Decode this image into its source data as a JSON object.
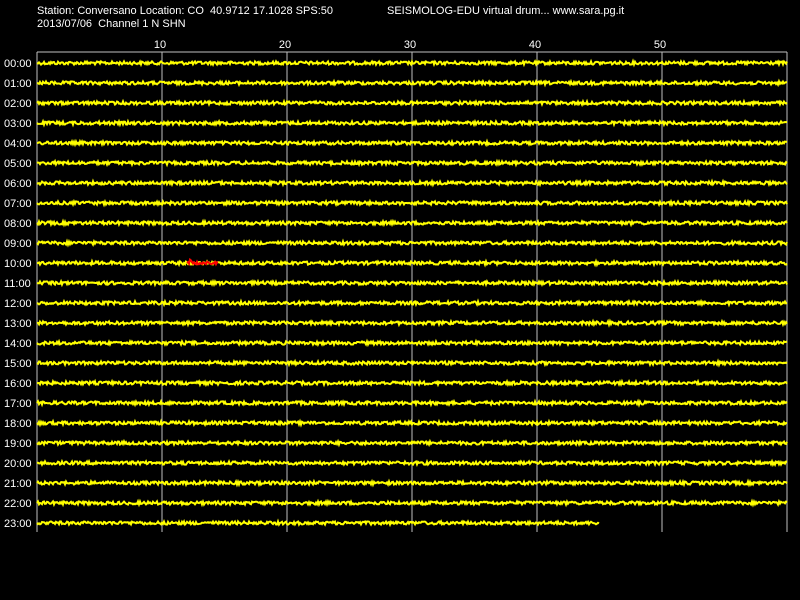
{
  "header": {
    "station_line": "Station: Conversano Location: CO  40.9712 17.1028 SPS:50",
    "app_line": "SEISMOLOG-EDU virtual drum... www.sara.pg.it",
    "date_line": "2013/07/06  Channel 1 N SHN"
  },
  "axis": {
    "minute_ticks": [
      "10",
      "20",
      "30",
      "40",
      "50"
    ],
    "minute_range": [
      0,
      60
    ]
  },
  "rows": [
    {
      "label": "00:00"
    },
    {
      "label": "01:00"
    },
    {
      "label": "02:00"
    },
    {
      "label": "03:00"
    },
    {
      "label": "04:00"
    },
    {
      "label": "05:00"
    },
    {
      "label": "06:00"
    },
    {
      "label": "07:00"
    },
    {
      "label": "08:00"
    },
    {
      "label": "09:00"
    },
    {
      "label": "10:00"
    },
    {
      "label": "11:00"
    },
    {
      "label": "12:00"
    },
    {
      "label": "13:00"
    },
    {
      "label": "14:00"
    },
    {
      "label": "15:00"
    },
    {
      "label": "16:00"
    },
    {
      "label": "17:00"
    },
    {
      "label": "18:00"
    },
    {
      "label": "19:00"
    },
    {
      "label": "20:00"
    },
    {
      "label": "21:00"
    },
    {
      "label": "22:00"
    },
    {
      "label": "23:00"
    }
  ],
  "last_row_end_minute": 45,
  "event": {
    "row": "10:00",
    "start_minute": 12,
    "end_minute": 14.5
  },
  "colors": {
    "trace": "#ffff00",
    "event": "#ff0000",
    "grid": "#c0c0c0",
    "background": "#000000",
    "text": "#ffffff"
  }
}
